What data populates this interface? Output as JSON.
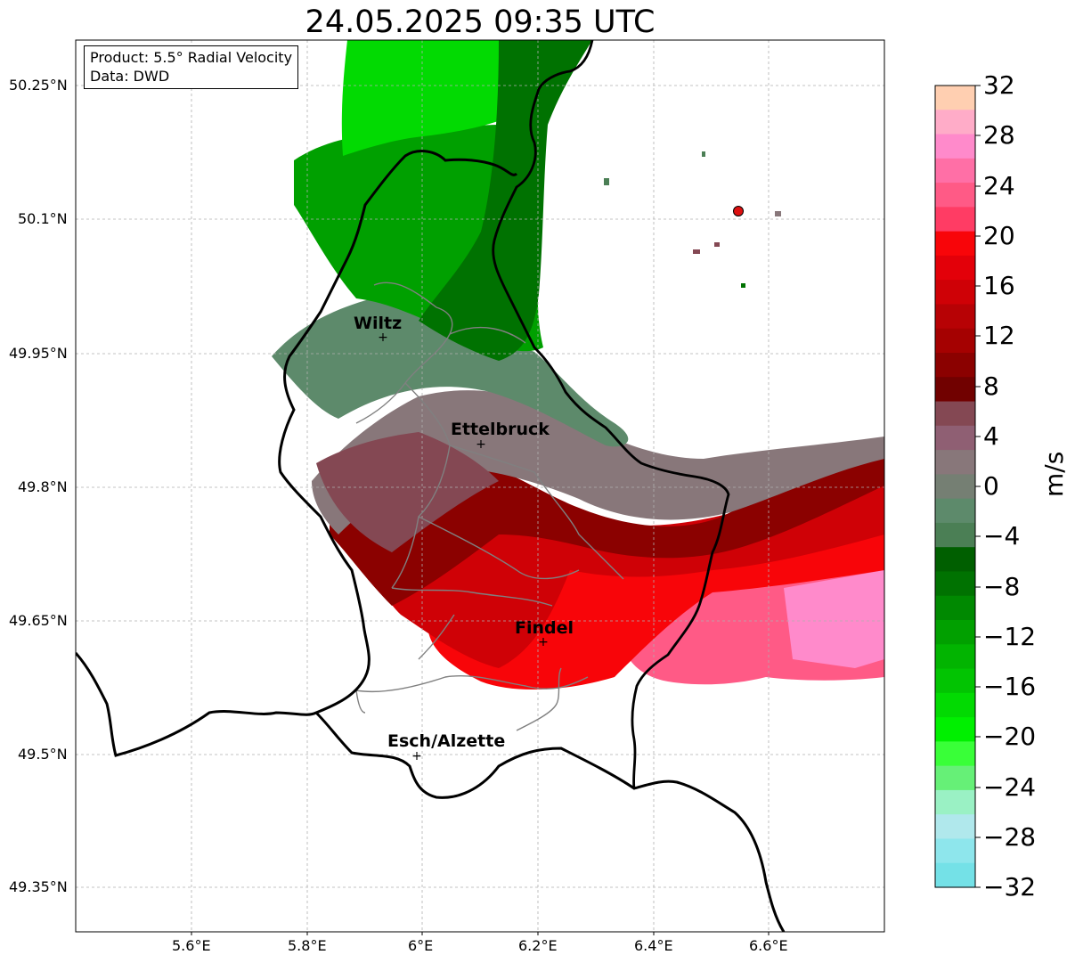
{
  "title": "24.05.2025 09:35 UTC",
  "info": {
    "product": "Product: 5.5° Radial Velocity",
    "source": "Data: DWD"
  },
  "axes": {
    "lon_ticks": [
      "5.6°E",
      "5.8°E",
      "6°E",
      "6.2°E",
      "6.4°E",
      "6.6°E"
    ],
    "lat_ticks": [
      "50.25°N",
      "50.1°N",
      "49.95°N",
      "49.8°N",
      "49.65°N",
      "49.5°N",
      "49.35°N"
    ]
  },
  "cities": [
    {
      "name": "Wiltz",
      "lon": 5.93,
      "lat": 49.97
    },
    {
      "name": "Ettelbruck",
      "lon": 6.1,
      "lat": 49.85
    },
    {
      "name": "Findel",
      "lon": 6.21,
      "lat": 49.63
    },
    {
      "name": "Esch/Alzette",
      "lon": 5.99,
      "lat": 49.5
    }
  ],
  "radar_site": {
    "lon": 6.55,
    "lat": 50.11,
    "color": "#dd1111"
  },
  "colorbar": {
    "unit": "m/s",
    "ticks": [
      "32",
      "28",
      "24",
      "20",
      "16",
      "12",
      "8",
      "4",
      "0",
      "−4",
      "−8",
      "−12",
      "−16",
      "−20",
      "−24",
      "−28",
      "−32"
    ],
    "colors_top_to_bottom": [
      "#ffcfb1",
      "#ffacc8",
      "#ff8acb",
      "#ff6fa6",
      "#ff5a86",
      "#ff3c64",
      "#f80509",
      "#e30009",
      "#cf0106",
      "#b70205",
      "#a50101",
      "#8b0100",
      "#710100",
      "#844853",
      "#8f5f73",
      "#88777a",
      "#757f73",
      "#5d8a6b",
      "#4b7f55",
      "#005f00",
      "#007201",
      "#008901",
      "#01a000",
      "#02b401",
      "#02c402",
      "#02da02",
      "#00f000",
      "#39ff38",
      "#66f077",
      "#9af1c4",
      "#b0e8ec",
      "#8ee6ec",
      "#74e1e7"
    ]
  }
}
